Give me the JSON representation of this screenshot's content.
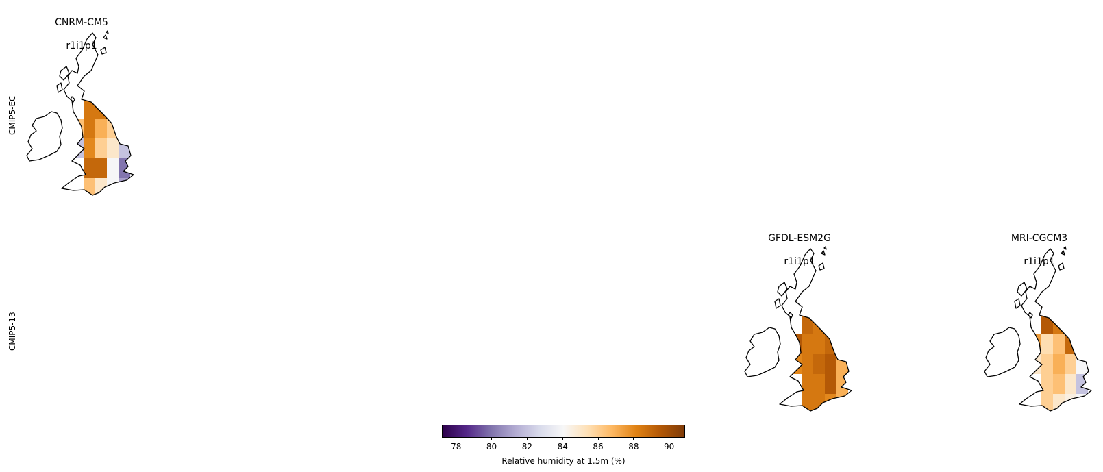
{
  "chart_data": {
    "type": "heatmap",
    "rows": [
      "CMIP5-EC",
      "CMIP5-13"
    ],
    "panels": [
      {
        "row": "CMIP5-EC",
        "model": "CNRM-CM5",
        "ensemble": "r1i1p1",
        "cells": [
          [
            null,
            90.5,
            85,
            82,
            null
          ],
          [
            null,
            88.5,
            88.5,
            85,
            null
          ],
          [
            86.5,
            88.5,
            87,
            86,
            82
          ],
          [
            82,
            88,
            86,
            85,
            82
          ],
          [
            null,
            89,
            89,
            84,
            80
          ],
          [
            null,
            86.5,
            85,
            84,
            81
          ]
        ]
      },
      {
        "row": "CMIP5-13",
        "model": "GFDL-ESM2G",
        "ensemble": "r1i1p1",
        "cells": [
          [
            null,
            90,
            88,
            88,
            null
          ],
          [
            null,
            89,
            88.5,
            88,
            null
          ],
          [
            89.5,
            88.5,
            88.5,
            89,
            88
          ],
          [
            88,
            88.5,
            89,
            89.5,
            87
          ],
          [
            null,
            88.5,
            88.5,
            89.5,
            87
          ],
          [
            null,
            88.5,
            88.5,
            88,
            87
          ]
        ]
      },
      {
        "row": "CMIP5-13",
        "model": "MRI-CGCM3",
        "ensemble": "r1i1p1",
        "cells": [
          [
            null,
            89,
            88,
            87,
            null
          ],
          [
            null,
            89.5,
            88.5,
            87,
            null
          ],
          [
            87.5,
            85.5,
            86.5,
            89,
            86
          ],
          [
            85,
            86,
            87,
            86,
            84
          ],
          [
            null,
            86,
            86.5,
            85,
            82
          ],
          [
            null,
            86,
            85,
            84.5,
            84
          ]
        ]
      }
    ],
    "colorbar": {
      "label": "Relative humidity at 1.5m (%)",
      "ticks": [
        "78",
        "80",
        "82",
        "84",
        "86",
        "88",
        "90"
      ],
      "vmin": 77.2,
      "vmax": 90.9,
      "colormap": [
        "#2d004b",
        "#542788",
        "#8073ac",
        "#b2abd2",
        "#d8daeb",
        "#f7f7f7",
        "#fee0b6",
        "#fdb863",
        "#e08214",
        "#b35806",
        "#7f3b08"
      ]
    }
  }
}
